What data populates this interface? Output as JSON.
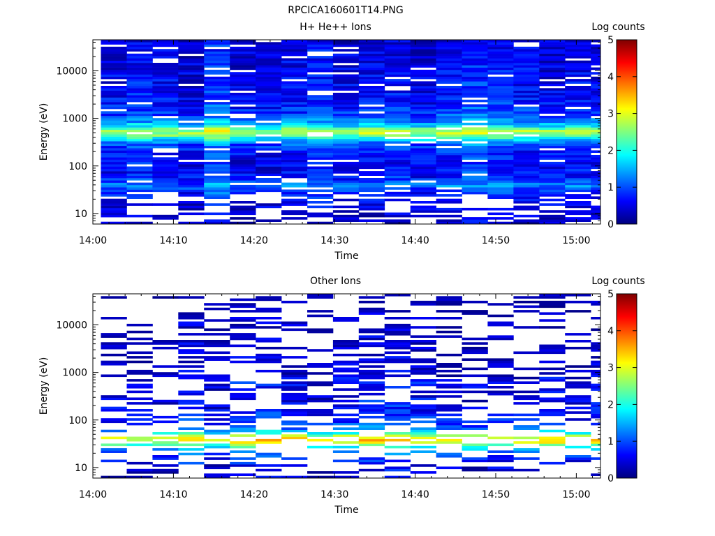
{
  "figure_title": "RPCICA160601T14.PNG",
  "colors": {
    "colormap": [
      "#00007f",
      "#0000ff",
      "#007fff",
      "#00ffff",
      "#7fff7f",
      "#ffff00",
      "#ff7f00",
      "#ff0000",
      "#7f0000"
    ]
  },
  "chart_data": [
    {
      "type": "heatmap",
      "title": "H+ He++ Ions",
      "xlabel": "Time",
      "ylabel": "Energy (eV)",
      "x_ticks": [
        "14:00",
        "14:10",
        "14:20",
        "14:30",
        "14:40",
        "14:50",
        "15:00"
      ],
      "x_range_minutes": [
        0,
        63
      ],
      "time_bins_minutes": [
        1,
        4.2,
        7.4,
        10.6,
        13.8,
        17,
        20.2,
        23.4,
        26.6,
        29.8,
        33,
        36.2,
        39.4,
        42.6,
        45.8,
        49,
        52.2,
        55.4,
        58.6,
        61.8
      ],
      "yscale": "log",
      "ylim": [
        6,
        45000
      ],
      "y_ticks": [
        "10",
        "100",
        "1000",
        "10000"
      ],
      "colorbar": {
        "label": "Log counts",
        "range": [
          0,
          5
        ],
        "ticks": [
          "0",
          "1",
          "2",
          "3",
          "4",
          "5"
        ]
      },
      "profile": [
        [
          6,
          0.4
        ],
        [
          9,
          0.4
        ],
        [
          13,
          0.6
        ],
        [
          18,
          0.7
        ],
        [
          28,
          0.9
        ],
        [
          38,
          1.3
        ],
        [
          45,
          1.1
        ],
        [
          60,
          0.8
        ],
        [
          100,
          0.7
        ],
        [
          200,
          0.8
        ],
        [
          300,
          1.2
        ],
        [
          380,
          1.9
        ],
        [
          450,
          2.6
        ],
        [
          520,
          2.9
        ],
        [
          600,
          2.5
        ],
        [
          700,
          1.8
        ],
        [
          900,
          1.3
        ],
        [
          1200,
          1.0
        ],
        [
          2000,
          0.8
        ],
        [
          5000,
          0.7
        ],
        [
          10000,
          0.65
        ],
        [
          20000,
          0.6
        ],
        [
          45000,
          0.55
        ]
      ],
      "sparsity": 0.1,
      "lowE_gap": 0.35,
      "seed": 7
    },
    {
      "type": "heatmap",
      "title": "Other Ions",
      "xlabel": "Time",
      "ylabel": "Energy (eV)",
      "x_ticks": [
        "14:00",
        "14:10",
        "14:20",
        "14:30",
        "14:40",
        "14:50",
        "15:00"
      ],
      "x_range_minutes": [
        0,
        63
      ],
      "time_bins_minutes": [
        1,
        4.2,
        7.4,
        10.6,
        13.8,
        17,
        20.2,
        23.4,
        26.6,
        29.8,
        33,
        36.2,
        39.4,
        42.6,
        45.8,
        49,
        52.2,
        55.4,
        58.6,
        61.8
      ],
      "yscale": "log",
      "ylim": [
        6,
        45000
      ],
      "y_ticks": [
        "10",
        "100",
        "1000",
        "10000"
      ],
      "colorbar": {
        "label": "Log counts",
        "range": [
          0,
          5
        ],
        "ticks": [
          "0",
          "1",
          "2",
          "3",
          "4",
          "5"
        ]
      },
      "profile": [
        [
          6,
          0.3
        ],
        [
          10,
          0.5
        ],
        [
          15,
          0.8
        ],
        [
          22,
          1.3
        ],
        [
          28,
          2.0
        ],
        [
          33,
          2.9
        ],
        [
          38,
          3.2
        ],
        [
          45,
          3.0
        ],
        [
          52,
          2.0
        ],
        [
          65,
          1.2
        ],
        [
          100,
          0.8
        ],
        [
          200,
          0.6
        ],
        [
          400,
          0.5
        ],
        [
          600,
          0.7
        ],
        [
          900,
          0.4
        ],
        [
          3000,
          0.3
        ],
        [
          45000,
          0.2
        ]
      ],
      "sparsity": 0.55,
      "lowE_gap": 0.3,
      "seed": 23
    }
  ]
}
